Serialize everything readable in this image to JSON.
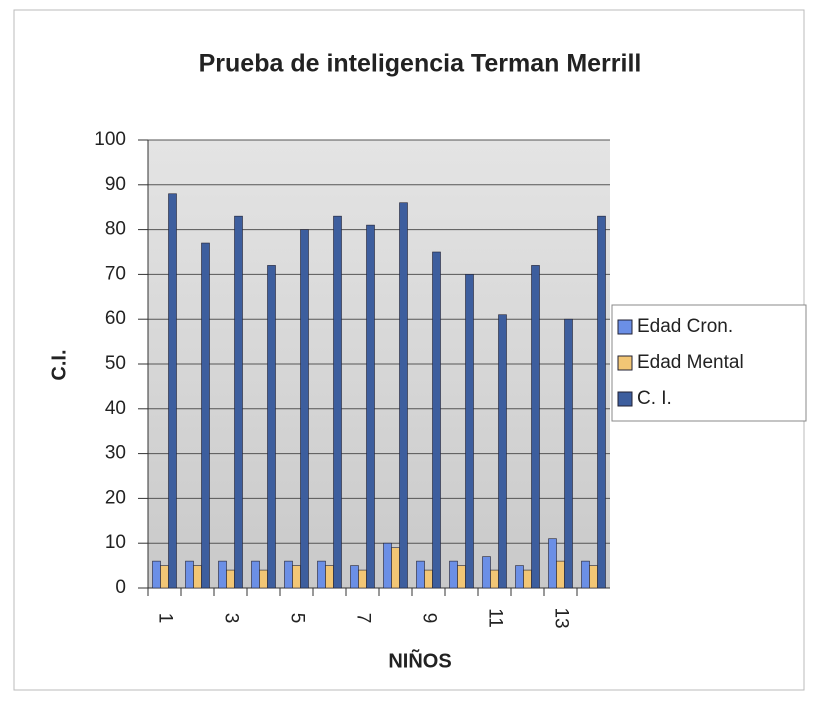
{
  "chart_data": {
    "type": "bar",
    "title": "Prueba de inteligencia Terman Merrill",
    "x_label": "NIÑOS",
    "y_label": "C.I.",
    "categories": [
      "1",
      null,
      "3",
      null,
      "5",
      null,
      "7",
      null,
      "9",
      null,
      "11",
      null,
      "13",
      null
    ],
    "series": [
      {
        "name": "Edad Cron.",
        "color": "#6b8fe6",
        "values": [
          6,
          6,
          6,
          6,
          6,
          6,
          5,
          10,
          6,
          6,
          7,
          5,
          11,
          6
        ]
      },
      {
        "name": "Edad Mental",
        "color": "#f2c675",
        "values": [
          5,
          5,
          4,
          4,
          5,
          5,
          4,
          9,
          4,
          5,
          4,
          4,
          6,
          5
        ]
      },
      {
        "name": "C. I.",
        "color": "#3d5e9e",
        "values": [
          88,
          77,
          83,
          72,
          80,
          83,
          81,
          86,
          75,
          70,
          61,
          72,
          60,
          83
        ]
      }
    ],
    "ylim": [
      0,
      100
    ],
    "yticks": [
      0,
      10,
      20,
      30,
      40,
      50,
      60,
      70,
      80,
      90,
      100
    ],
    "grid": true,
    "legend": "right"
  }
}
